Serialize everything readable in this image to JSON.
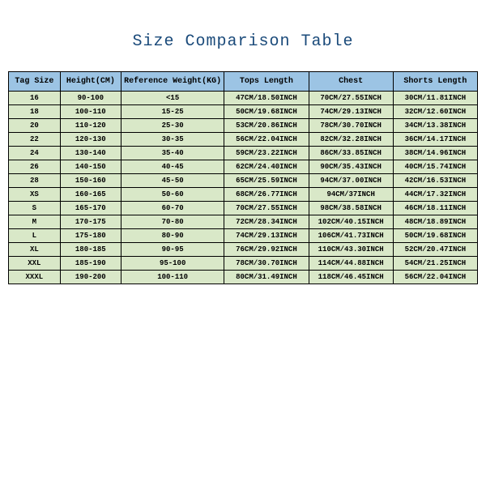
{
  "title": "Size Comparison Table",
  "columns": [
    "Tag Size",
    "Height(CM)",
    "Reference Weight(KG)",
    "Tops Length",
    "Chest",
    "Shorts Length"
  ],
  "rows": [
    [
      "16",
      "90-100",
      "<15",
      "47CM/18.50INCH",
      "70CM/27.55INCH",
      "30CM/11.81INCH"
    ],
    [
      "18",
      "100-110",
      "15-25",
      "50CM/19.68INCH",
      "74CM/29.13INCH",
      "32CM/12.60INCH"
    ],
    [
      "20",
      "110-120",
      "25-30",
      "53CM/20.86INCH",
      "78CM/30.70INCH",
      "34CM/13.38INCH"
    ],
    [
      "22",
      "120-130",
      "30-35",
      "56CM/22.04INCH",
      "82CM/32.28INCH",
      "36CM/14.17INCH"
    ],
    [
      "24",
      "130-140",
      "35-40",
      "59CM/23.22INCH",
      "86CM/33.85INCH",
      "38CM/14.96INCH"
    ],
    [
      "26",
      "140-150",
      "40-45",
      "62CM/24.40INCH",
      "90CM/35.43INCH",
      "40CM/15.74INCH"
    ],
    [
      "28",
      "150-160",
      "45-50",
      "65CM/25.59INCH",
      "94CM/37.00INCH",
      "42CM/16.53INCH"
    ],
    [
      "XS",
      "160-165",
      "50-60",
      "68CM/26.77INCH",
      "94CM/37INCH",
      "44CM/17.32INCH"
    ],
    [
      "S",
      "165-170",
      "60-70",
      "70CM/27.55INCH",
      "98CM/38.58INCH",
      "46CM/18.11INCH"
    ],
    [
      "M",
      "170-175",
      "70-80",
      "72CM/28.34INCH",
      "102CM/40.15INCH",
      "48CM/18.89INCH"
    ],
    [
      "L",
      "175-180",
      "80-90",
      "74CM/29.13INCH",
      "106CM/41.73INCH",
      "50CM/19.68INCH"
    ],
    [
      "XL",
      "180-185",
      "90-95",
      "76CM/29.92INCH",
      "110CM/43.30INCH",
      "52CM/20.47INCH"
    ],
    [
      "XXL",
      "185-190",
      "95-100",
      "78CM/30.70INCH",
      "114CM/44.88INCH",
      "54CM/21.25INCH"
    ],
    [
      "XXXL",
      "190-200",
      "100-110",
      "80CM/31.49INCH",
      "118CM/46.45INCH",
      "56CM/22.04INCH"
    ]
  ],
  "styling": {
    "header_bg": "#9cc4e4",
    "row_bg": "#d9e8c8",
    "border_color": "#000000",
    "title_color": "#1a4a7a",
    "font_family": "Courier New, monospace",
    "title_fontsize": 20,
    "header_fontsize": 10,
    "cell_fontsize": 9,
    "col_widths_pct": [
      11,
      13,
      22,
      18,
      18,
      18
    ]
  }
}
